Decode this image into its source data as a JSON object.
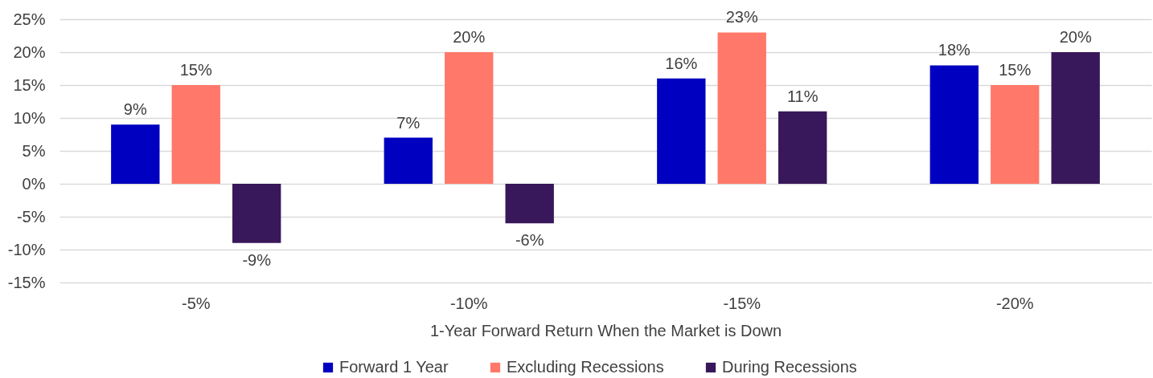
{
  "chart_data": {
    "type": "bar",
    "categories": [
      "-5%",
      "-10%",
      "-15%",
      "-20%"
    ],
    "xlabel": "1-Year Forward Return When the Market is Down",
    "series": [
      {
        "name": "Forward 1 Year",
        "color": "#0000c0",
        "values": [
          9,
          7,
          16,
          18
        ],
        "value_labels": [
          "9%",
          "7%",
          "16%",
          "18%"
        ]
      },
      {
        "name": "Excluding Recessions",
        "color": "#ff7869",
        "values": [
          15,
          20,
          23,
          15
        ],
        "value_labels": [
          "15%",
          "20%",
          "23%",
          "15%"
        ]
      },
      {
        "name": "During Recessions",
        "color": "#38175a",
        "values": [
          -9,
          -6,
          11,
          20
        ],
        "value_labels": [
          "-9%",
          "-6%",
          "11%",
          "20%"
        ]
      }
    ],
    "ylim": [
      -15,
      25
    ],
    "yticks": [
      {
        "value": -15,
        "label": "-15%"
      },
      {
        "value": -10,
        "label": "-10%"
      },
      {
        "value": -5,
        "label": "-5%"
      },
      {
        "value": 0,
        "label": "0%"
      },
      {
        "value": 5,
        "label": "5%"
      },
      {
        "value": 10,
        "label": "10%"
      },
      {
        "value": 15,
        "label": "15%"
      },
      {
        "value": 20,
        "label": "20%"
      },
      {
        "value": 25,
        "label": "25%"
      }
    ],
    "grid": "y",
    "legend": "bottom"
  }
}
